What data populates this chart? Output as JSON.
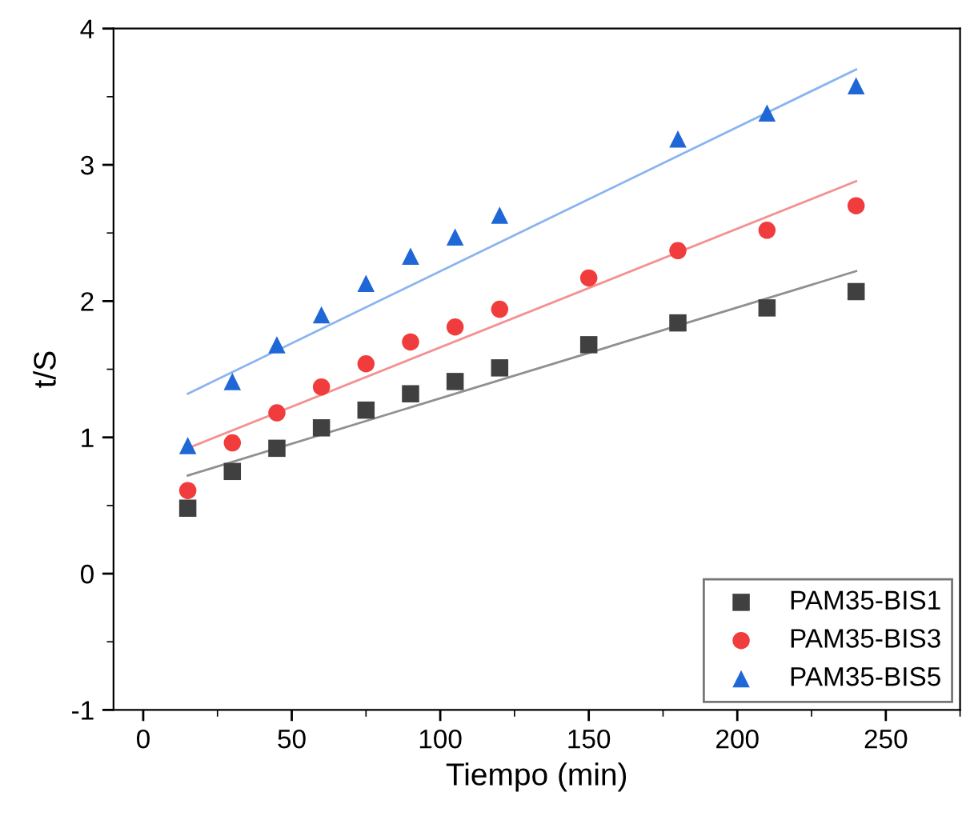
{
  "chart_data": {
    "type": "scatter",
    "xlabel": "Tiempo (min)",
    "ylabel": "t/S",
    "x": [
      15,
      30,
      45,
      60,
      75,
      90,
      105,
      120,
      150,
      180,
      210,
      240
    ],
    "series": [
      {
        "name": "PAM35-BIS1",
        "color": "#404040",
        "marker": "square",
        "values": [
          0.48,
          0.75,
          0.92,
          1.07,
          1.2,
          1.32,
          1.41,
          1.51,
          1.68,
          1.84,
          1.95,
          2.07
        ]
      },
      {
        "name": "PAM35-BIS3",
        "color": "#f03c3c",
        "marker": "circle",
        "values": [
          0.61,
          0.96,
          1.18,
          1.37,
          1.54,
          1.7,
          1.81,
          1.94,
          2.17,
          2.37,
          2.52,
          2.7
        ]
      },
      {
        "name": "PAM35-BIS5",
        "color": "#1f66d6",
        "marker": "triangle",
        "x": [
          15,
          30,
          45,
          60,
          75,
          90,
          105,
          120,
          180,
          210,
          240
        ],
        "values": [
          0.94,
          1.41,
          1.68,
          1.9,
          2.13,
          2.33,
          2.47,
          2.63,
          3.19,
          3.38,
          3.58
        ]
      },
      {
        "type": "line",
        "color": "#909090",
        "x": [
          15,
          240
        ],
        "values": [
          0.72,
          2.22
        ]
      },
      {
        "type": "line",
        "color": "#f49090",
        "x": [
          15,
          240
        ],
        "values": [
          0.92,
          2.88
        ]
      },
      {
        "type": "line",
        "color": "#8ab4f0",
        "x": [
          15,
          240
        ],
        "values": [
          1.32,
          3.7
        ]
      }
    ],
    "xlim": [
      -10,
      275
    ],
    "xticks": [
      0,
      50,
      100,
      150,
      200,
      250
    ],
    "ylim": [
      -1,
      4
    ],
    "yticks": [
      -1,
      0,
      1,
      2,
      3,
      4
    ],
    "grid": false,
    "legend": "bottom right"
  }
}
